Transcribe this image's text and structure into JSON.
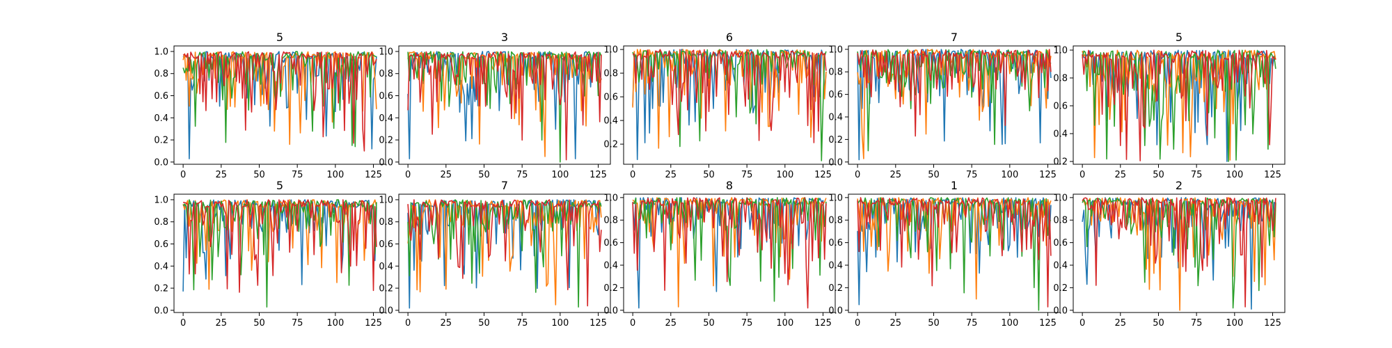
{
  "figure": {
    "series_colors": [
      "#1f77b4",
      "#ff7f0e",
      "#2ca02c",
      "#d62728"
    ]
  },
  "chart_data": [
    {
      "type": "line",
      "title": "5",
      "xlim": [
        -6,
        133
      ],
      "ylim": [
        -0.02,
        1.05
      ],
      "xticks": [
        0,
        25,
        50,
        75,
        100,
        125
      ],
      "yticks": [
        0.0,
        0.2,
        0.4,
        0.6,
        0.8,
        1.0
      ],
      "ytick_labels": [
        "0.0",
        "0.2",
        "0.4",
        "0.6",
        "0.8",
        "1.0"
      ],
      "n_points": 128,
      "series_count": 4,
      "notable_mins": [
        {
          "x": 4,
          "y": 0.03
        },
        {
          "x": 60,
          "y": 0.28
        },
        {
          "x": 113,
          "y": 0.14
        },
        {
          "x": 119,
          "y": 0.1
        },
        {
          "x": 124,
          "y": 0.12
        }
      ]
    },
    {
      "type": "line",
      "title": "3",
      "xlim": [
        -6,
        133
      ],
      "ylim": [
        -0.02,
        1.05
      ],
      "xticks": [
        0,
        25,
        50,
        75,
        100,
        125
      ],
      "yticks": [
        0.0,
        0.2,
        0.4,
        0.6,
        0.8,
        1.0
      ],
      "ytick_labels": [
        "0.0",
        "0.2",
        "0.4",
        "0.6",
        "0.8",
        "1.0"
      ],
      "n_points": 128,
      "series_count": 4,
      "notable_mins": [
        {
          "x": 1,
          "y": 0.03
        },
        {
          "x": 90,
          "y": 0.05
        },
        {
          "x": 100,
          "y": 0.0
        },
        {
          "x": 104,
          "y": 0.02
        },
        {
          "x": 110,
          "y": 0.03
        }
      ]
    },
    {
      "type": "line",
      "title": "6",
      "xlim": [
        -6,
        133
      ],
      "ylim": [
        0.03,
        1.03
      ],
      "xticks": [
        0,
        25,
        50,
        75,
        100,
        125
      ],
      "yticks": [
        0.2,
        0.4,
        0.6,
        0.8,
        1.0
      ],
      "ytick_labels": [
        "0.2",
        "0.4",
        "0.6",
        "0.8",
        "1.0"
      ],
      "n_points": 128,
      "series_count": 4,
      "notable_mins": [
        {
          "x": 3,
          "y": 0.07
        },
        {
          "x": 45,
          "y": 0.42
        },
        {
          "x": 124,
          "y": 0.06
        }
      ]
    },
    {
      "type": "line",
      "title": "7",
      "xlim": [
        -6,
        133
      ],
      "ylim": [
        -0.02,
        1.03
      ],
      "xticks": [
        0,
        25,
        50,
        75,
        100,
        125
      ],
      "yticks": [
        0.0,
        0.2,
        0.4,
        0.6,
        0.8,
        1.0
      ],
      "ytick_labels": [
        "0.0",
        "0.2",
        "0.4",
        "0.6",
        "0.8",
        "1.0"
      ],
      "n_points": 128,
      "series_count": 4,
      "notable_mins": [
        {
          "x": 1,
          "y": 0.02
        },
        {
          "x": 4,
          "y": 0.03
        },
        {
          "x": 7,
          "y": 0.1
        },
        {
          "x": 38,
          "y": 0.23
        },
        {
          "x": 120,
          "y": 0.17
        }
      ]
    },
    {
      "type": "line",
      "title": "5",
      "xlim": [
        -6,
        133
      ],
      "ylim": [
        0.18,
        1.03
      ],
      "xticks": [
        0,
        25,
        50,
        75,
        100,
        125
      ],
      "yticks": [
        0.2,
        0.4,
        0.6,
        0.8,
        1.0
      ],
      "ytick_labels": [
        "0.2",
        "0.4",
        "0.6",
        "0.8",
        "1.0"
      ],
      "n_points": 128,
      "series_count": 4,
      "notable_mins": [
        {
          "x": 49,
          "y": 0.32
        },
        {
          "x": 97,
          "y": 0.21
        },
        {
          "x": 101,
          "y": 0.21
        },
        {
          "x": 123,
          "y": 0.32
        }
      ]
    },
    {
      "type": "line",
      "title": "5",
      "xlim": [
        -6,
        133
      ],
      "ylim": [
        -0.02,
        1.05
      ],
      "xticks": [
        0,
        25,
        50,
        75,
        100,
        125
      ],
      "yticks": [
        0.0,
        0.2,
        0.4,
        0.6,
        0.8,
        1.0
      ],
      "ytick_labels": [
        "0.0",
        "0.2",
        "0.4",
        "0.6",
        "0.8",
        "1.0"
      ],
      "n_points": 128,
      "series_count": 4,
      "notable_mins": [
        {
          "x": 0,
          "y": 0.17
        },
        {
          "x": 17,
          "y": 0.19
        },
        {
          "x": 55,
          "y": 0.03
        },
        {
          "x": 104,
          "y": 0.34
        }
      ]
    },
    {
      "type": "line",
      "title": "7",
      "xlim": [
        -6,
        133
      ],
      "ylim": [
        -0.02,
        1.05
      ],
      "xticks": [
        0,
        25,
        50,
        75,
        100,
        125
      ],
      "yticks": [
        0.0,
        0.2,
        0.4,
        0.6,
        0.8,
        1.0
      ],
      "ytick_labels": [
        "0.0",
        "0.2",
        "0.4",
        "0.6",
        "0.8",
        "1.0"
      ],
      "n_points": 128,
      "series_count": 4,
      "notable_mins": [
        {
          "x": 1,
          "y": 0.02
        },
        {
          "x": 97,
          "y": 0.05
        },
        {
          "x": 112,
          "y": 0.03
        },
        {
          "x": 118,
          "y": 0.04
        }
      ]
    },
    {
      "type": "line",
      "title": "8",
      "xlim": [
        -6,
        133
      ],
      "ylim": [
        -0.02,
        1.03
      ],
      "xticks": [
        0,
        25,
        50,
        75,
        100,
        125
      ],
      "yticks": [
        0.0,
        0.2,
        0.4,
        0.6,
        0.8,
        1.0
      ],
      "ytick_labels": [
        "0.0",
        "0.2",
        "0.4",
        "0.6",
        "0.8",
        "1.0"
      ],
      "n_points": 128,
      "series_count": 4,
      "notable_mins": [
        {
          "x": 4,
          "y": 0.02
        },
        {
          "x": 30,
          "y": 0.03
        },
        {
          "x": 93,
          "y": 0.08
        },
        {
          "x": 115,
          "y": 0.02
        }
      ]
    },
    {
      "type": "line",
      "title": "1",
      "xlim": [
        -6,
        133
      ],
      "ylim": [
        -0.02,
        1.03
      ],
      "xticks": [
        0,
        25,
        50,
        75,
        100,
        125
      ],
      "yticks": [
        0.0,
        0.2,
        0.4,
        0.6,
        0.8,
        1.0
      ],
      "ytick_labels": [
        "0.0",
        "0.2",
        "0.4",
        "0.6",
        "0.8",
        "1.0"
      ],
      "n_points": 128,
      "series_count": 4,
      "notable_mins": [
        {
          "x": 1,
          "y": 0.05
        },
        {
          "x": 78,
          "y": 0.1
        },
        {
          "x": 119,
          "y": 0.0
        },
        {
          "x": 125,
          "y": 0.03
        }
      ]
    },
    {
      "type": "line",
      "title": "2",
      "xlim": [
        -6,
        133
      ],
      "ylim": [
        -0.02,
        1.03
      ],
      "xticks": [
        0,
        25,
        50,
        75,
        100,
        125
      ],
      "yticks": [
        0.0,
        0.2,
        0.4,
        0.6,
        0.8,
        1.0
      ],
      "ytick_labels": [
        "0.0",
        "0.2",
        "0.4",
        "0.6",
        "0.8",
        "1.0"
      ],
      "n_points": 128,
      "series_count": 4,
      "notable_mins": [
        {
          "x": 3,
          "y": 0.23
        },
        {
          "x": 64,
          "y": 0.0
        },
        {
          "x": 99,
          "y": 0.02
        },
        {
          "x": 107,
          "y": 0.03
        },
        {
          "x": 111,
          "y": 0.01
        }
      ]
    }
  ]
}
